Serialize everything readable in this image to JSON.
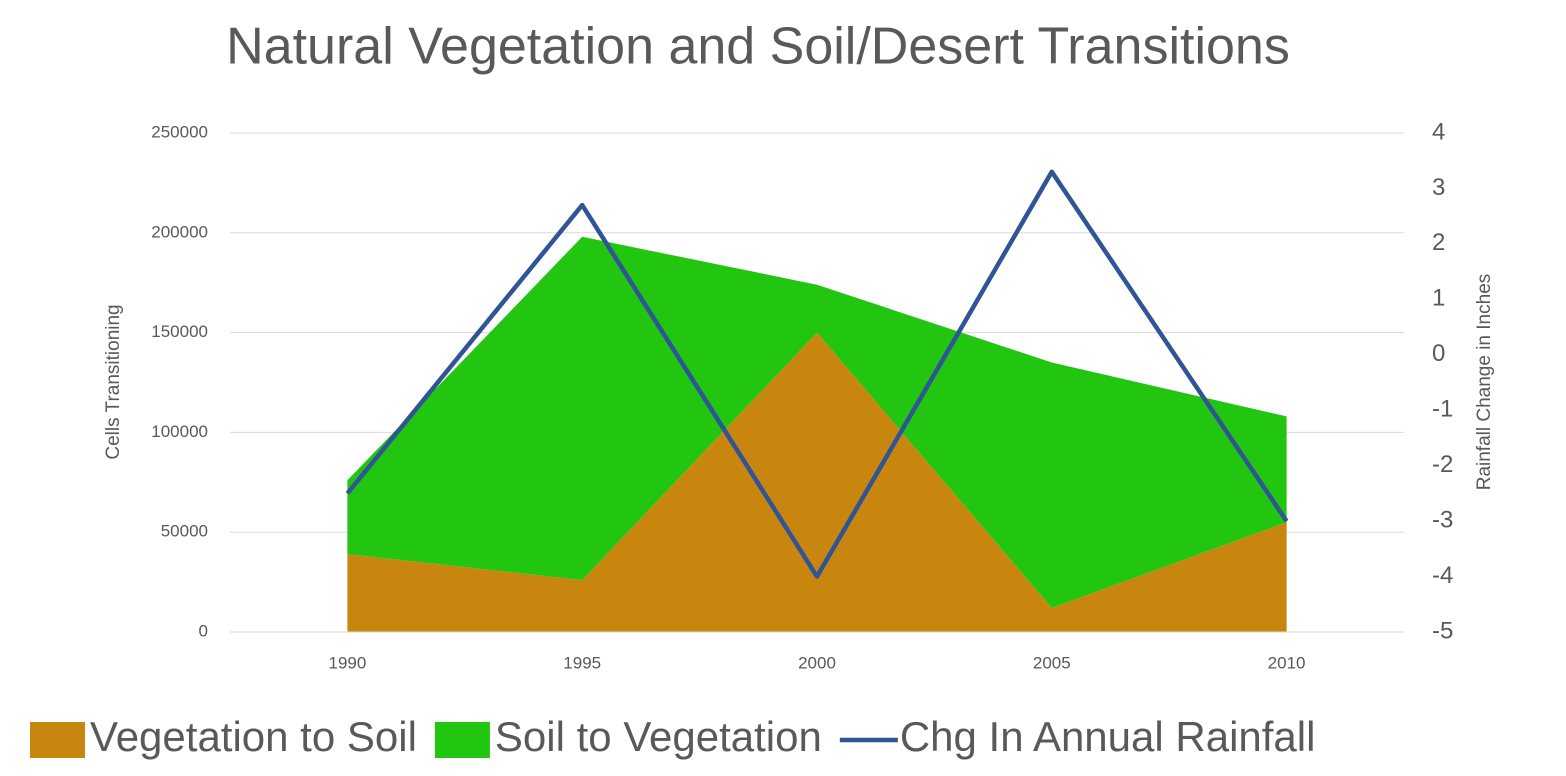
{
  "chart_data": {
    "type": "stacked-area-line",
    "title": "Natural Vegetation and Soil/Desert Transitions",
    "ylabel": "Cells Transitioning",
    "y2label": "Rainfall Change in Inches",
    "categories": [
      "1990",
      "1995",
      "2000",
      "2005",
      "2010"
    ],
    "series": [
      {
        "name": "Vegetation to Soil",
        "type": "area",
        "color": "#c8860f",
        "values": [
          39000,
          26000,
          150000,
          12000,
          55000
        ]
      },
      {
        "name": "Soil to Vegetation",
        "type": "area",
        "color": "#22c50f",
        "values": [
          37000,
          172000,
          24000,
          123000,
          53000
        ]
      },
      {
        "name": "Chg In Annual Rainfall",
        "type": "line",
        "axis": "y2",
        "color": "#2f5597",
        "values": [
          -2.5,
          2.7,
          -4,
          3.3,
          -3
        ]
      }
    ],
    "ylim": [
      0,
      250000
    ],
    "yticks": [
      0,
      50000,
      100000,
      150000,
      200000,
      250000
    ],
    "y2lim": [
      -5,
      4
    ],
    "y2ticks": [
      -5,
      -4,
      -3,
      -2,
      -1,
      0,
      1,
      2,
      3,
      4
    ],
    "grid": true,
    "legend": "bottom"
  }
}
